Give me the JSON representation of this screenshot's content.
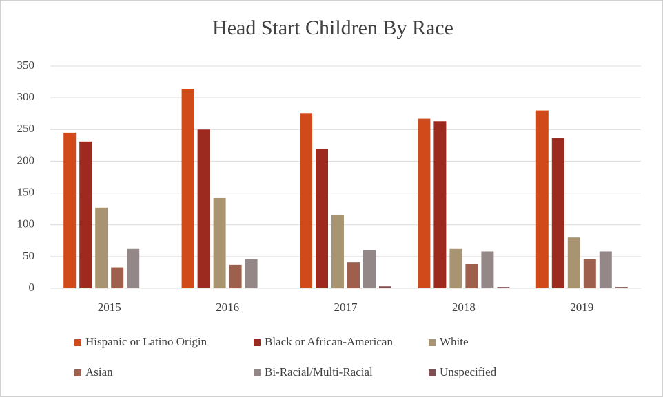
{
  "chart_data": {
    "type": "bar",
    "title": "Head Start Children By Race",
    "categories": [
      "2015",
      "2016",
      "2017",
      "2018",
      "2019"
    ],
    "series": [
      {
        "name": "Hispanic or Latino Origin",
        "color": "#d04a1a",
        "values": [
          245,
          314,
          276,
          267,
          280
        ]
      },
      {
        "name": "Black or African-American",
        "color": "#9c2a1f",
        "values": [
          231,
          250,
          220,
          263,
          237
        ]
      },
      {
        "name": "White",
        "color": "#a89470",
        "values": [
          127,
          142,
          116,
          62,
          80
        ]
      },
      {
        "name": "Asian",
        "color": "#9e5f4d",
        "values": [
          33,
          37,
          41,
          38,
          46
        ]
      },
      {
        "name": "Bi-Racial/Multi-Racial",
        "color": "#948787",
        "values": [
          62,
          46,
          60,
          58,
          58
        ]
      },
      {
        "name": "Unspecified",
        "color": "#7f4f52",
        "values": [
          0,
          0,
          3,
          2,
          2
        ]
      }
    ],
    "ylim": [
      0,
      350
    ],
    "yticks": [
      0,
      50,
      100,
      150,
      200,
      250,
      300,
      350
    ],
    "grid": true,
    "legend": "bottom"
  }
}
